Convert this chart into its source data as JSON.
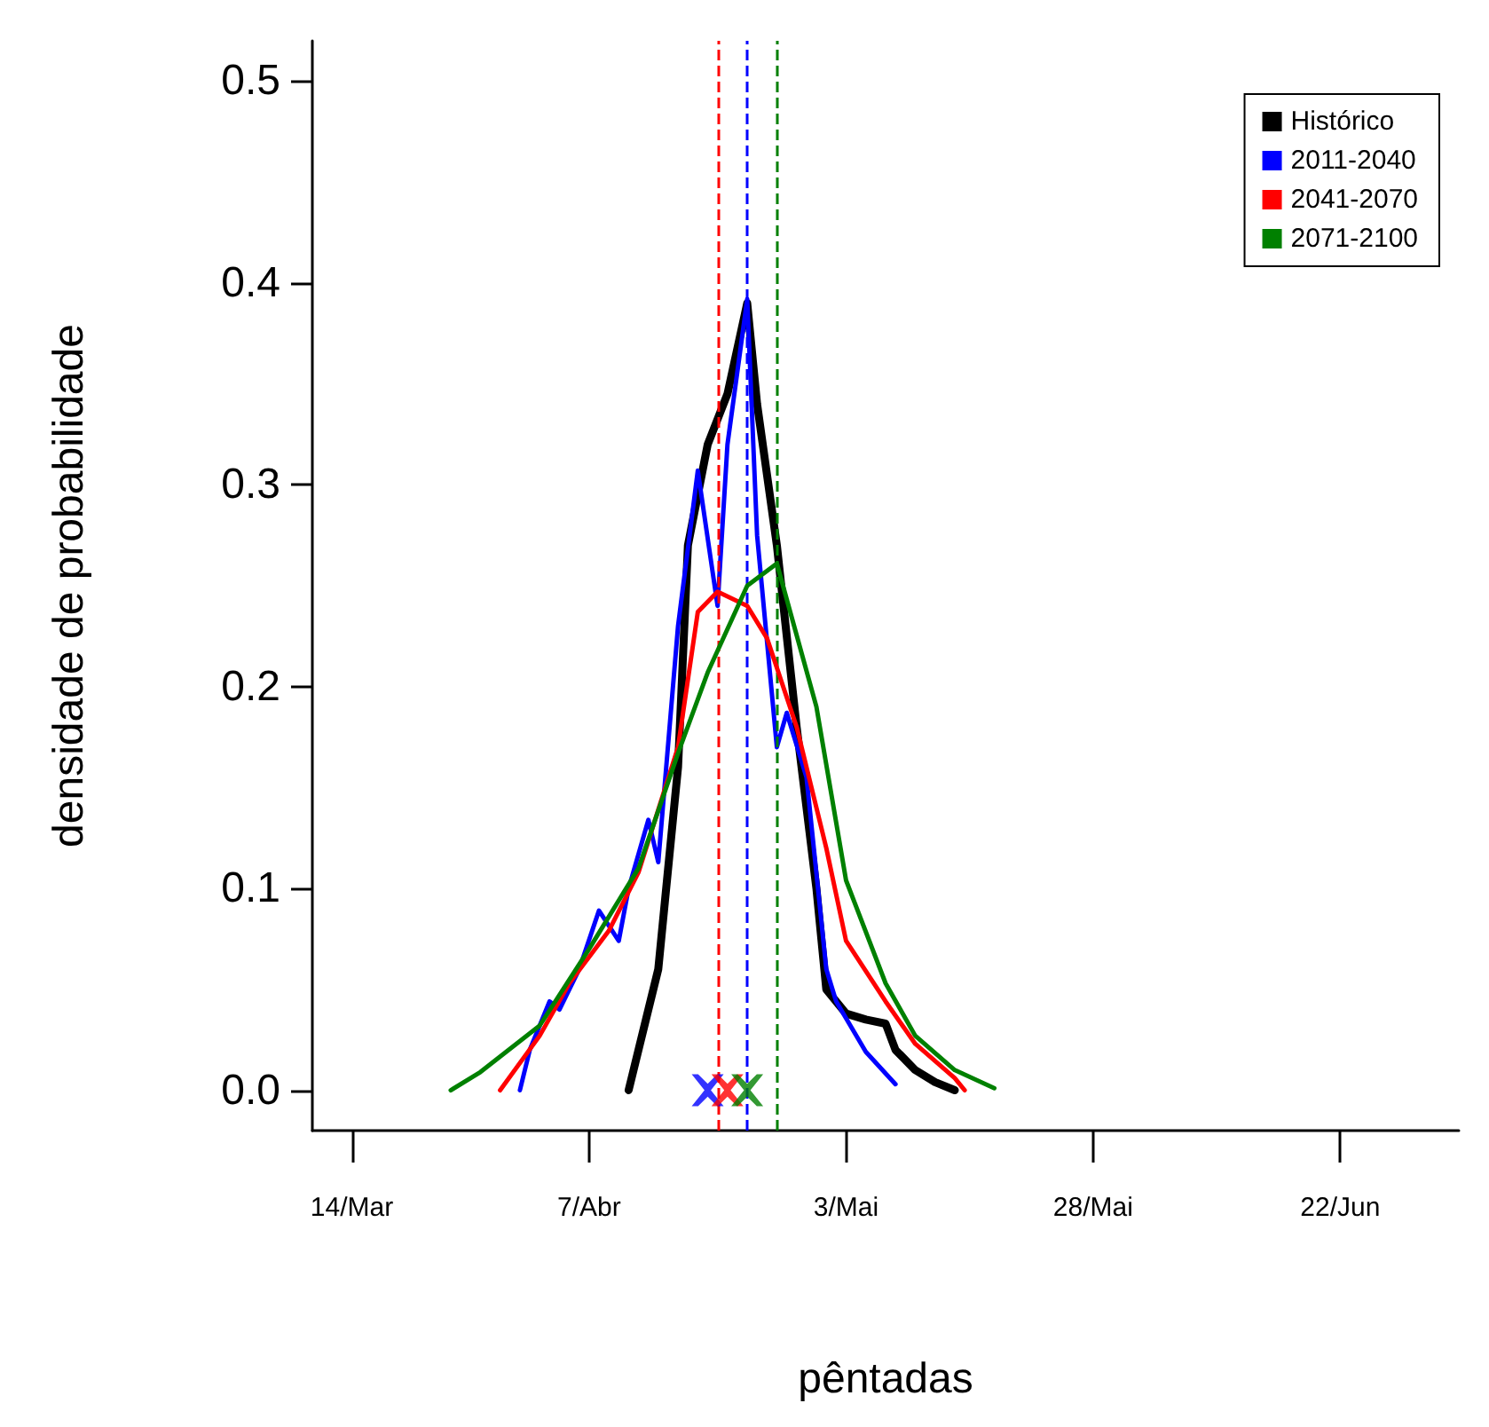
{
  "chart_data": {
    "type": "line",
    "xlabel": "pêntadas",
    "ylabel": "densidade de probabilidade",
    "xlim": [
      "--03-10",
      "--07-04"
    ],
    "ylim": [
      -0.02,
      0.52
    ],
    "xticks": [
      {
        "value": "--03-14",
        "label": "14/Mar"
      },
      {
        "value": "--04-07",
        "label": "7/Abr"
      },
      {
        "value": "--05-03",
        "label": "3/Mai"
      },
      {
        "value": "--05-28",
        "label": "28/Mai"
      },
      {
        "value": "--06-22",
        "label": "22/Jun"
      }
    ],
    "yticks": [
      {
        "value": 0,
        "label": "0.0"
      },
      {
        "value": 0.1,
        "label": "0.1"
      },
      {
        "value": 0.2,
        "label": "0.2"
      },
      {
        "value": 0.3,
        "label": "0.3"
      },
      {
        "value": 0.4,
        "label": "0.4"
      },
      {
        "value": 0.5,
        "label": "0.5"
      }
    ],
    "grid": false,
    "legend": "top right",
    "series": [
      {
        "name": "Histórico",
        "color": "#000000",
        "x": [
          "--04-11",
          "--04-12",
          "--04-14",
          "--04-16",
          "--04-17",
          "--04-19",
          "--04-21",
          "--04-23",
          "--04-24",
          "--04-26",
          "--04-28",
          "--04-30",
          "--05-01",
          "--05-03",
          "--05-05",
          "--05-07",
          "--05-08",
          "--05-10",
          "--05-12",
          "--05-14"
        ],
        "values": [
          0.0,
          0.02,
          0.06,
          0.16,
          0.27,
          0.32,
          0.345,
          0.39,
          0.34,
          0.27,
          0.18,
          0.1,
          0.05,
          0.038,
          0.035,
          0.033,
          0.02,
          0.01,
          0.004,
          0.0
        ]
      },
      {
        "name": "2011-2040",
        "color": "#0000ff",
        "x": [
          "--03-31",
          "--04-01",
          "--04-03",
          "--04-04",
          "--04-06",
          "--04-08",
          "--04-10",
          "--04-11",
          "--04-13",
          "--04-14",
          "--04-16",
          "--04-18",
          "--04-20",
          "--04-21",
          "--04-23",
          "--04-24",
          "--04-26",
          "--04-27",
          "--04-29",
          "--05-01",
          "--05-02",
          "--05-05",
          "--05-08"
        ],
        "values": [
          0.0,
          0.02,
          0.044,
          0.04,
          0.06,
          0.089,
          0.074,
          0.1,
          0.134,
          0.113,
          0.23,
          0.307,
          0.24,
          0.32,
          0.392,
          0.275,
          0.17,
          0.187,
          0.155,
          0.06,
          0.044,
          0.019,
          0.003
        ]
      },
      {
        "name": "2041-2070",
        "color": "#ff0000",
        "x": [
          "--03-29",
          "--04-02",
          "--04-05",
          "--04-09",
          "--04-12",
          "--04-16",
          "--04-18",
          "--04-20",
          "--04-23",
          "--04-25",
          "--04-28",
          "--05-01",
          "--05-03",
          "--05-07",
          "--05-10",
          "--05-14",
          "--05-15"
        ],
        "values": [
          0.0,
          0.027,
          0.053,
          0.079,
          0.108,
          0.17,
          0.237,
          0.247,
          0.24,
          0.224,
          0.18,
          0.12,
          0.074,
          0.044,
          0.023,
          0.006,
          0.0
        ]
      },
      {
        "name": "2071-2100",
        "color": "#008000",
        "x": [
          "--03-24",
          "--03-27",
          "--04-02",
          "--04-07",
          "--04-12",
          "--04-16",
          "--04-19",
          "--04-23",
          "--04-26",
          "--04-30",
          "--05-03",
          "--05-07",
          "--05-10",
          "--05-14",
          "--05-18"
        ],
        "values": [
          0.0,
          0.009,
          0.032,
          0.07,
          0.11,
          0.167,
          0.207,
          0.25,
          0.261,
          0.19,
          0.104,
          0.053,
          0.027,
          0.01,
          0.001
        ]
      },
      {
        "type": "scatter",
        "marker": "cross",
        "color": "#0000ff",
        "x": [
          "--04-19"
        ],
        "values": [
          0
        ]
      },
      {
        "type": "scatter",
        "marker": "cross",
        "color": "#ff0000",
        "x": [
          "--04-21"
        ],
        "values": [
          0
        ]
      },
      {
        "type": "scatter",
        "marker": "cross",
        "color": "#008000",
        "x": [
          "--04-23"
        ],
        "values": [
          0
        ]
      }
    ],
    "ref_lines": [
      {
        "axis": "x",
        "value": "--04-20",
        "color": "#ff0000",
        "line_style": "dashed"
      },
      {
        "axis": "x",
        "value": "--04-23",
        "color": "#0000ff",
        "line_style": "dashed"
      },
      {
        "axis": "x",
        "value": "--04-26",
        "color": "#008000",
        "line_style": "dashed"
      }
    ]
  }
}
